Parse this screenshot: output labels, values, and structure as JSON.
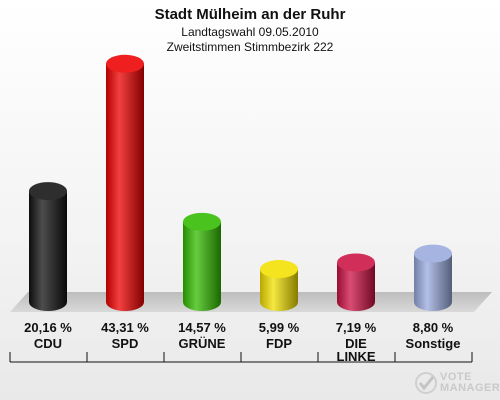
{
  "header": {
    "title": "Stadt Mülheim an der Ruhr",
    "subtitle1": "Landtagswahl 09.05.2010",
    "subtitle2": "Zweitstimmen Stimmbezirk 222"
  },
  "brand": {
    "line1": "VOTE",
    "line2": "MANAGER"
  },
  "chart_data": {
    "type": "bar",
    "title": "Stadt Mülheim an der Ruhr",
    "subtitle": "Landtagswahl 09.05.2010 — Zweitstimmen Stimmbezirk 222",
    "categories": [
      "CDU",
      "SPD",
      "GRÜNE",
      "FDP",
      "DIE LINKE",
      "Sonstige"
    ],
    "values": [
      20.16,
      43.31,
      14.57,
      5.99,
      7.19,
      8.8
    ],
    "value_labels": [
      "20,16 %",
      "43,31 %",
      "14,57 %",
      "5,99 %",
      "7,19 %",
      "8,80 %"
    ],
    "colors": [
      "#111111",
      "#ee0000",
      "#33bb00",
      "#f2e000",
      "#cc1144",
      "#99aadd"
    ],
    "ylim": [
      0,
      45
    ],
    "grid": false,
    "legend": "none"
  }
}
